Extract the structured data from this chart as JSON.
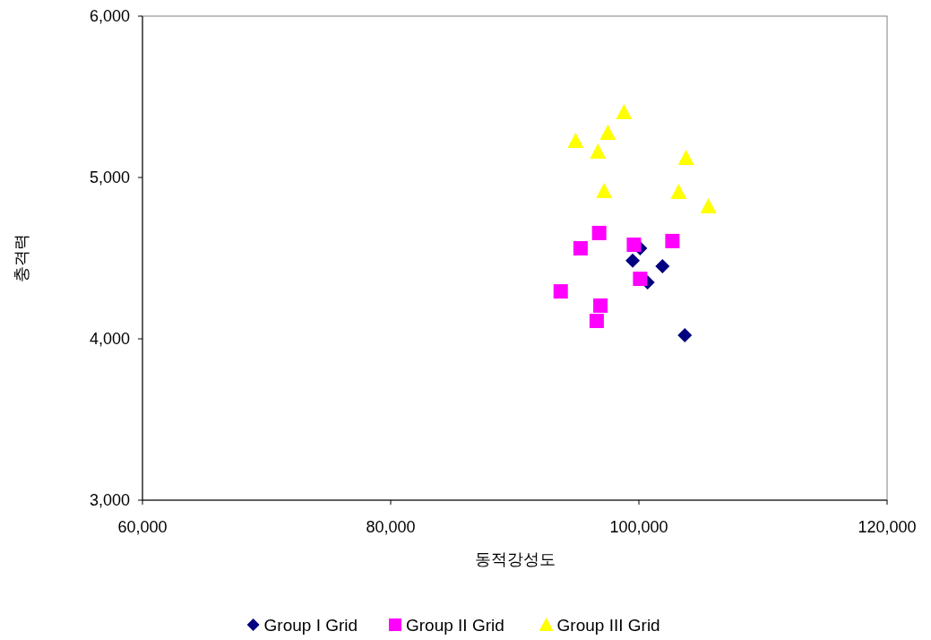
{
  "chart_data": {
    "type": "scatter",
    "xlabel": "동적강성도",
    "ylabel": "충격력",
    "xlim": [
      60000,
      120000
    ],
    "xticks": [
      {
        "value": 60000,
        "label": "60,000"
      },
      {
        "value": 80000,
        "label": "80,000"
      },
      {
        "value": 100000,
        "label": "100,000"
      },
      {
        "value": 120000,
        "label": "120,000"
      }
    ],
    "ylim": [
      3000,
      6000
    ],
    "yticks": [
      {
        "value": 3000,
        "label": "3,000"
      },
      {
        "value": 4000,
        "label": "4,000"
      },
      {
        "value": 5000,
        "label": "5,000"
      },
      {
        "value": 6000,
        "label": "6,000"
      }
    ],
    "grid": false,
    "legend": "bottom",
    "series": [
      {
        "name": "Group I Grid",
        "color": "#000080",
        "marker": "diamond",
        "x": [
          100100,
          99500,
          101900,
          100700,
          103700
        ],
        "values": [
          4561,
          4485,
          4450,
          4350,
          4022
        ]
      },
      {
        "name": "Group II Grid",
        "color": "#ff00ff",
        "marker": "square",
        "x": [
          96800,
          95300,
          99600,
          102700,
          100100,
          93700,
          96900,
          96600
        ],
        "values": [
          4656,
          4561,
          4583,
          4606,
          4372,
          4294,
          4206,
          4111
        ]
      },
      {
        "name": "Group III Grid",
        "color": "#ffff00",
        "marker": "triangle",
        "x": [
          98800,
          97500,
          94900,
          96700,
          103800,
          97200,
          103200,
          105600
        ],
        "values": [
          5406,
          5278,
          5228,
          5161,
          5122,
          4917,
          4911,
          4822
        ]
      }
    ]
  }
}
